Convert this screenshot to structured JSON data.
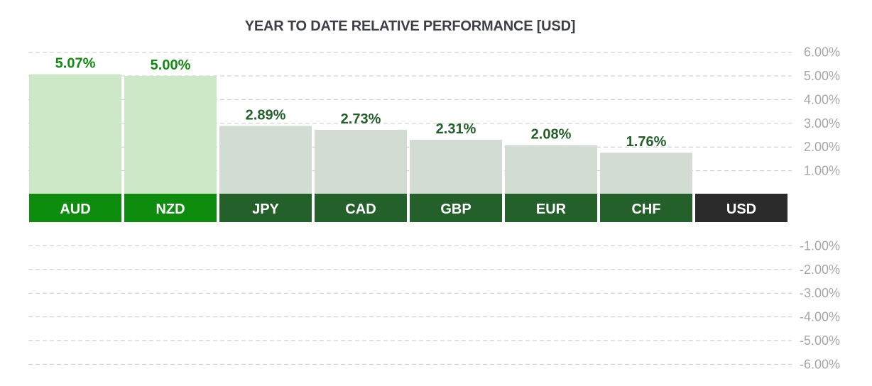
{
  "title": "YEAR TO DATE RELATIVE PERFORMANCE  [USD]",
  "chart_data": {
    "type": "bar",
    "title": "YEAR TO DATE RELATIVE PERFORMANCE  [USD]",
    "categories": [
      "AUD",
      "NZD",
      "JPY",
      "CAD",
      "GBP",
      "EUR",
      "CHF",
      "USD"
    ],
    "values": [
      5.07,
      5.0,
      2.89,
      2.73,
      2.31,
      2.08,
      1.76,
      0
    ],
    "value_labels": [
      "5.07%",
      "5.00%",
      "2.89%",
      "2.73%",
      "2.31%",
      "2.08%",
      "1.76%",
      ""
    ],
    "ylim": [
      -6,
      6
    ],
    "y_ticks": [
      6,
      5,
      4,
      3,
      2,
      1,
      -1,
      -2,
      -3,
      -4,
      -5,
      -6
    ],
    "y_tick_labels": [
      "6.00%",
      "5.00%",
      "4.00%",
      "3.00%",
      "2.00%",
      "1.00%",
      "-1.00%",
      "-2.00%",
      "-3.00%",
      "-4.00%",
      "-5.00%",
      "-6.00%"
    ],
    "grid": true,
    "colors": {
      "strong_bar": "#cde8c6",
      "strong_label_bg": "#0e8c0e",
      "strong_value_text": "#0e8c0e",
      "weak_bar": "#d2dcd2",
      "weak_label_bg": "#23602a",
      "weak_value_text": "#23602a",
      "base_label_bg": "#2b2b2b",
      "label_text": "#ffffff",
      "grid": "#c8c8c8",
      "tick_text": "#a6a6a6"
    },
    "tiers": [
      "strong",
      "strong",
      "weak",
      "weak",
      "weak",
      "weak",
      "weak",
      "base"
    ]
  }
}
